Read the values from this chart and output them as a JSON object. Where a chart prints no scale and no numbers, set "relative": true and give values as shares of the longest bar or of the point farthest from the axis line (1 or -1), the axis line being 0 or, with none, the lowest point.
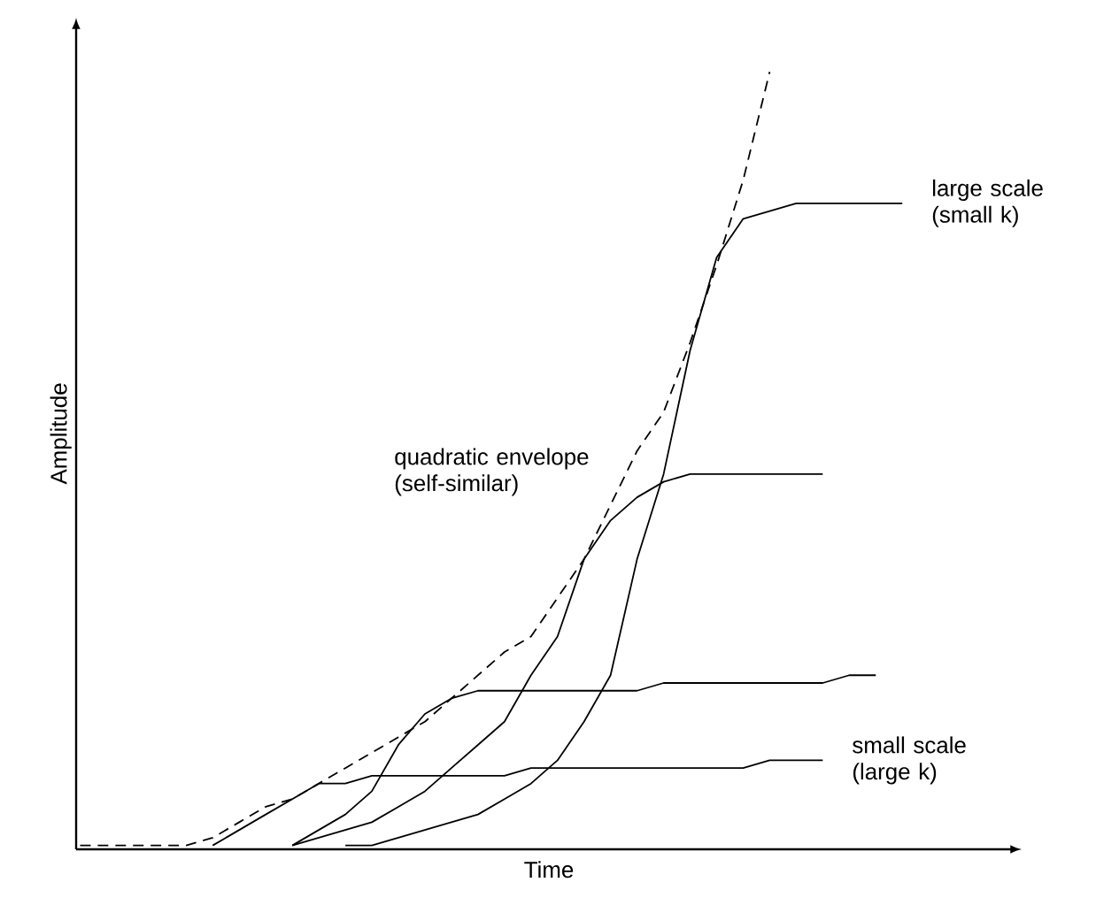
{
  "chart_data": {
    "type": "line",
    "relative": true,
    "xlabel": "Time",
    "ylabel": "Amplitude",
    "legend": false,
    "categories": [
      null,
      null,
      null,
      null,
      null,
      null,
      null,
      null,
      null,
      null,
      null,
      null,
      null,
      null,
      null,
      null,
      null,
      null,
      null,
      null,
      null,
      null,
      null,
      null,
      null,
      null,
      null,
      null,
      null,
      null,
      null,
      null,
      null,
      null,
      null,
      null
    ],
    "series": [
      {
        "name": "quadratic envelope (self-similar)",
        "color": "#000000",
        "line_style": "dashed",
        "values": [
          0,
          0,
          0,
          0,
          0,
          0.01,
          0.03,
          0.05,
          0.06,
          0.08,
          0.1,
          0.12,
          0.14,
          0.16,
          0.19,
          0.22,
          0.25,
          0.27,
          0.32,
          0.37,
          0.44,
          0.51,
          0.56,
          0.65,
          0.75,
          0.86,
          1,
          null,
          null,
          null,
          null,
          null,
          null,
          null,
          null,
          null
        ]
      },
      {
        "name": "small scale (large k)",
        "color": "#000000",
        "line_style": "solid",
        "values": [
          null,
          null,
          null,
          null,
          null,
          0,
          0.02,
          0.04,
          0.06,
          0.08,
          0.08,
          0.09,
          0.09,
          0.09,
          0.09,
          0.09,
          0.09,
          0.1,
          0.1,
          0.1,
          0.1,
          0.1,
          0.1,
          0.1,
          0.1,
          0.1,
          0.11,
          0.11,
          0.11,
          null,
          null,
          null,
          null,
          null,
          null,
          null
        ]
      },
      {
        "color": "#000000",
        "line_style": "solid",
        "values": [
          null,
          null,
          null,
          null,
          null,
          null,
          null,
          null,
          0,
          0.02,
          0.04,
          0.07,
          0.13,
          0.17,
          0.19,
          0.2,
          0.2,
          0.2,
          0.2,
          0.2,
          0.2,
          0.2,
          0.21,
          0.21,
          0.21,
          0.21,
          0.21,
          0.21,
          0.21,
          0.22,
          0.22,
          null,
          null,
          null,
          null,
          null
        ]
      },
      {
        "color": "#000000",
        "line_style": "solid",
        "values": [
          null,
          null,
          null,
          null,
          null,
          null,
          null,
          null,
          0,
          0.01,
          0.02,
          0.03,
          0.05,
          0.07,
          0.1,
          0.13,
          0.16,
          0.22,
          0.27,
          0.37,
          0.42,
          0.45,
          0.47,
          0.48,
          0.48,
          0.48,
          0.48,
          0.48,
          0.48,
          null,
          null,
          null,
          null,
          null,
          null,
          null
        ]
      },
      {
        "name": "large scale (small k)",
        "color": "#000000",
        "line_style": "solid",
        "values": [
          null,
          null,
          null,
          null,
          null,
          null,
          null,
          null,
          null,
          null,
          0,
          0,
          0.01,
          0.02,
          0.03,
          0.04,
          0.06,
          0.08,
          0.11,
          0.16,
          0.22,
          0.37,
          0.48,
          0.64,
          0.76,
          0.81,
          0.82,
          0.83,
          0.83,
          0.83,
          0.83,
          0.83,
          null,
          null,
          null,
          null
        ]
      }
    ]
  }
}
